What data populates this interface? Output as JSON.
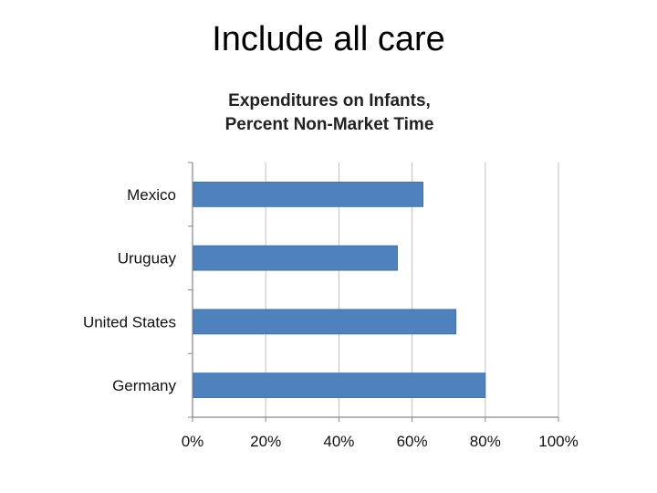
{
  "slide": {
    "title": "Include all care"
  },
  "chart_data": {
    "type": "bar",
    "orientation": "horizontal",
    "title_lines": [
      "Expenditures on Infants,",
      "Percent Non-Market Time"
    ],
    "categories": [
      "Mexico",
      "Uruguay",
      "United States",
      "Germany"
    ],
    "values": [
      0.63,
      0.56,
      0.72,
      0.8
    ],
    "xlim": [
      0,
      1
    ],
    "x_ticks": [
      "0%",
      "20%",
      "40%",
      "60%",
      "80%",
      "100%"
    ],
    "xlabel": "",
    "ylabel": "",
    "grid": "vertical",
    "legend": "none",
    "colors": {
      "bar": "#4F81BD",
      "bar_edge": "#3A6EA8",
      "grid": "#BFBFBF",
      "axis": "#868686"
    }
  }
}
